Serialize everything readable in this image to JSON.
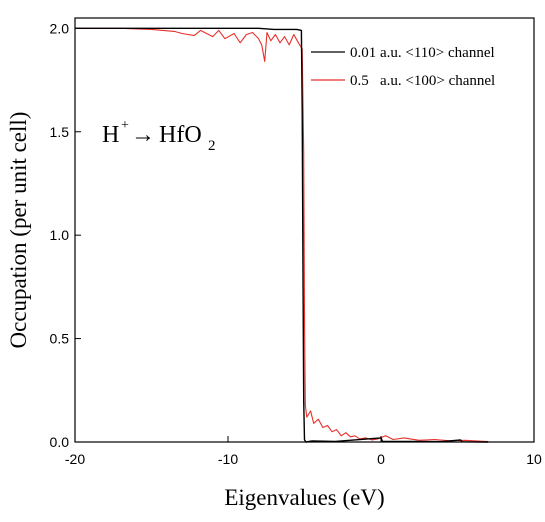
{
  "chart_data": {
    "type": "line",
    "xlabel": "Eigenvalues (eV)",
    "ylabel": "Occupation (per unit cell)",
    "xlim": [
      -20,
      10
    ],
    "ylim": [
      0,
      2.05
    ],
    "x_ticks": [
      -20,
      -10,
      0,
      10
    ],
    "y_ticks": [
      0.0,
      0.5,
      1.0,
      1.5,
      2.0
    ],
    "x_tick_labels": [
      "-20",
      "-10",
      "0",
      "10"
    ],
    "y_tick_labels": [
      "0.0",
      "0.5",
      "1.0",
      "1.5",
      "2.0"
    ],
    "grid": false,
    "legend_position": "top-right",
    "annotation": {
      "prefix": "H",
      "superscript": "+",
      "arrow": "→",
      "compound": "HfO",
      "subscript": "2"
    },
    "series": [
      {
        "name": "0.01 a.u. <110> channel",
        "color": "#000000",
        "points": [
          [
            -20,
            2.0
          ],
          [
            -15,
            2.0
          ],
          [
            -10,
            2.0
          ],
          [
            -8,
            2.0
          ],
          [
            -7,
            1.995
          ],
          [
            -6,
            1.995
          ],
          [
            -5.5,
            1.995
          ],
          [
            -5.2,
            1.99
          ],
          [
            -5.15,
            1.6
          ],
          [
            -5.1,
            0.8
          ],
          [
            -5.05,
            0.2
          ],
          [
            -5.0,
            0.01
          ],
          [
            -4.9,
            0.0
          ],
          [
            -4.5,
            0.005
          ],
          [
            -3,
            0.003
          ],
          [
            0,
            0.02
          ],
          [
            0.1,
            0.003
          ],
          [
            2,
            0.003
          ],
          [
            4,
            0.002
          ],
          [
            5.2,
            0.01
          ],
          [
            5.3,
            0.001
          ],
          [
            7,
            0.0
          ]
        ]
      },
      {
        "name": "0.5   a.u. <100> channel",
        "color": "#e8302a",
        "points": [
          [
            -20,
            2.0
          ],
          [
            -17,
            2.0
          ],
          [
            -15,
            1.995
          ],
          [
            -13.5,
            1.985
          ],
          [
            -13,
            1.975
          ],
          [
            -12.2,
            1.965
          ],
          [
            -11.8,
            1.99
          ],
          [
            -11,
            1.96
          ],
          [
            -10.6,
            1.99
          ],
          [
            -10.2,
            1.95
          ],
          [
            -9.6,
            1.975
          ],
          [
            -9.2,
            1.93
          ],
          [
            -8.8,
            1.97
          ],
          [
            -8.4,
            1.98
          ],
          [
            -8.0,
            1.95
          ],
          [
            -7.8,
            1.92
          ],
          [
            -7.6,
            1.84
          ],
          [
            -7.45,
            1.98
          ],
          [
            -7.2,
            1.94
          ],
          [
            -6.9,
            1.97
          ],
          [
            -6.6,
            1.93
          ],
          [
            -6.3,
            1.96
          ],
          [
            -6.0,
            1.92
          ],
          [
            -5.7,
            1.97
          ],
          [
            -5.4,
            1.93
          ],
          [
            -5.15,
            1.9
          ],
          [
            -5.05,
            1.4
          ],
          [
            -5.0,
            0.6
          ],
          [
            -4.95,
            0.18
          ],
          [
            -4.85,
            0.12
          ],
          [
            -4.6,
            0.15
          ],
          [
            -4.4,
            0.09
          ],
          [
            -4.1,
            0.11
          ],
          [
            -3.8,
            0.07
          ],
          [
            -3.5,
            0.08
          ],
          [
            -3.2,
            0.05
          ],
          [
            -2.9,
            0.06
          ],
          [
            -2.6,
            0.03
          ],
          [
            -2.3,
            0.045
          ],
          [
            -2.0,
            0.025
          ],
          [
            -1.7,
            0.03
          ],
          [
            -1.4,
            0.015
          ],
          [
            -1.0,
            0.02
          ],
          [
            -0.6,
            0.01
          ],
          [
            -0.2,
            0.015
          ],
          [
            0.3,
            0.03
          ],
          [
            0.8,
            0.012
          ],
          [
            1.5,
            0.02
          ],
          [
            2.5,
            0.008
          ],
          [
            3.5,
            0.012
          ],
          [
            4.5,
            0.006
          ],
          [
            5.5,
            0.008
          ],
          [
            6.5,
            0.004
          ],
          [
            7.0,
            0.002
          ]
        ]
      }
    ]
  }
}
